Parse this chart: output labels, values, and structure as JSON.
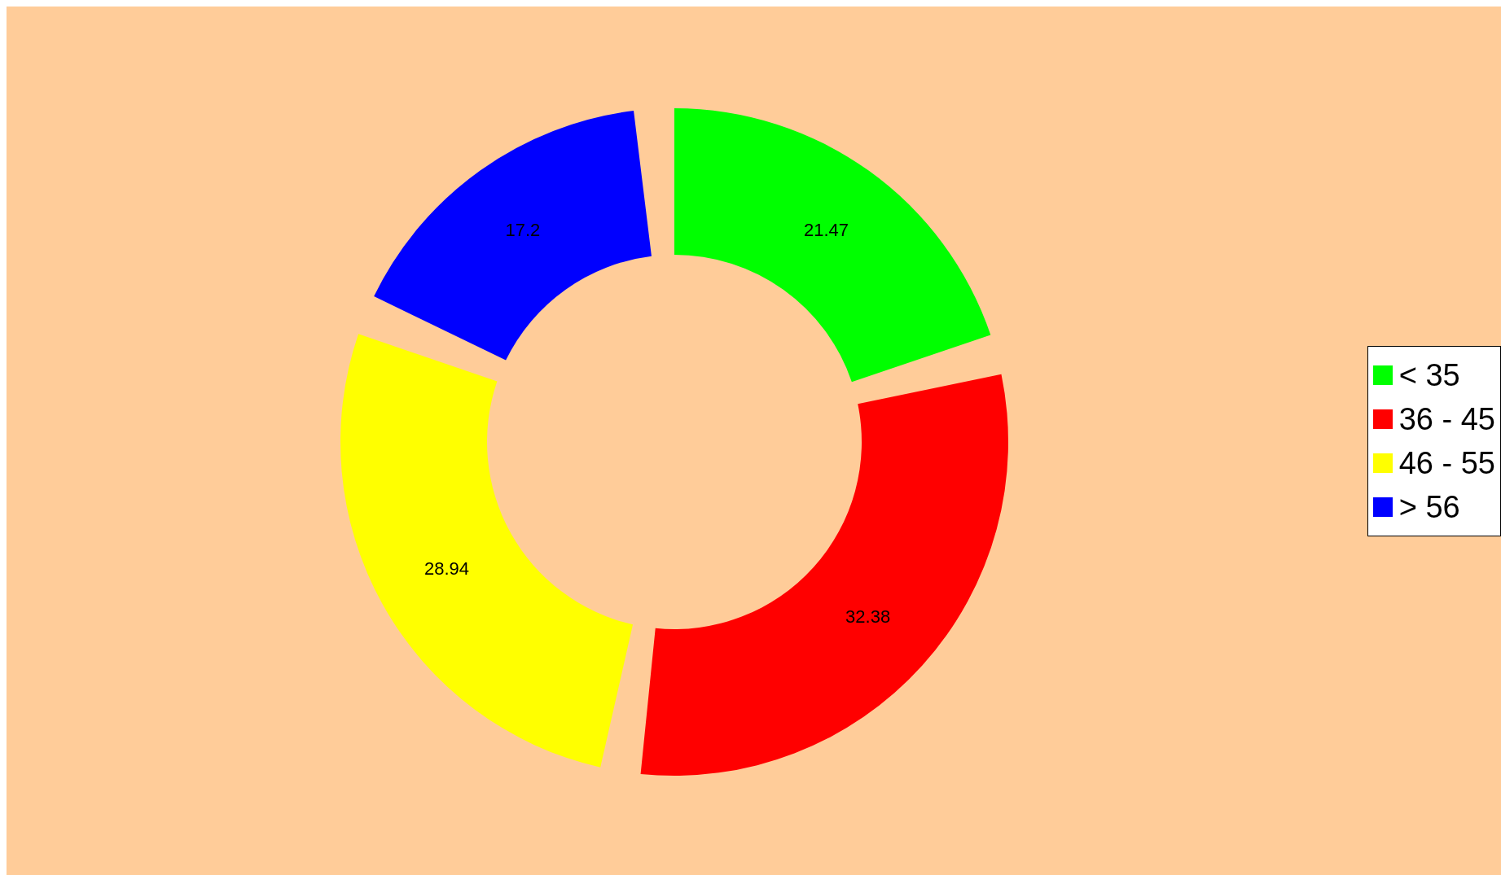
{
  "chart_data": {
    "type": "donut",
    "categories": [
      "< 35",
      "36 - 45",
      "46 - 55",
      "> 56"
    ],
    "values": [
      21.47,
      32.38,
      28.94,
      17.2
    ],
    "colors": [
      "#00ff00",
      "#ff0000",
      "#ffff00",
      "#0000ff"
    ],
    "data_labels": true,
    "legend": "right"
  }
}
